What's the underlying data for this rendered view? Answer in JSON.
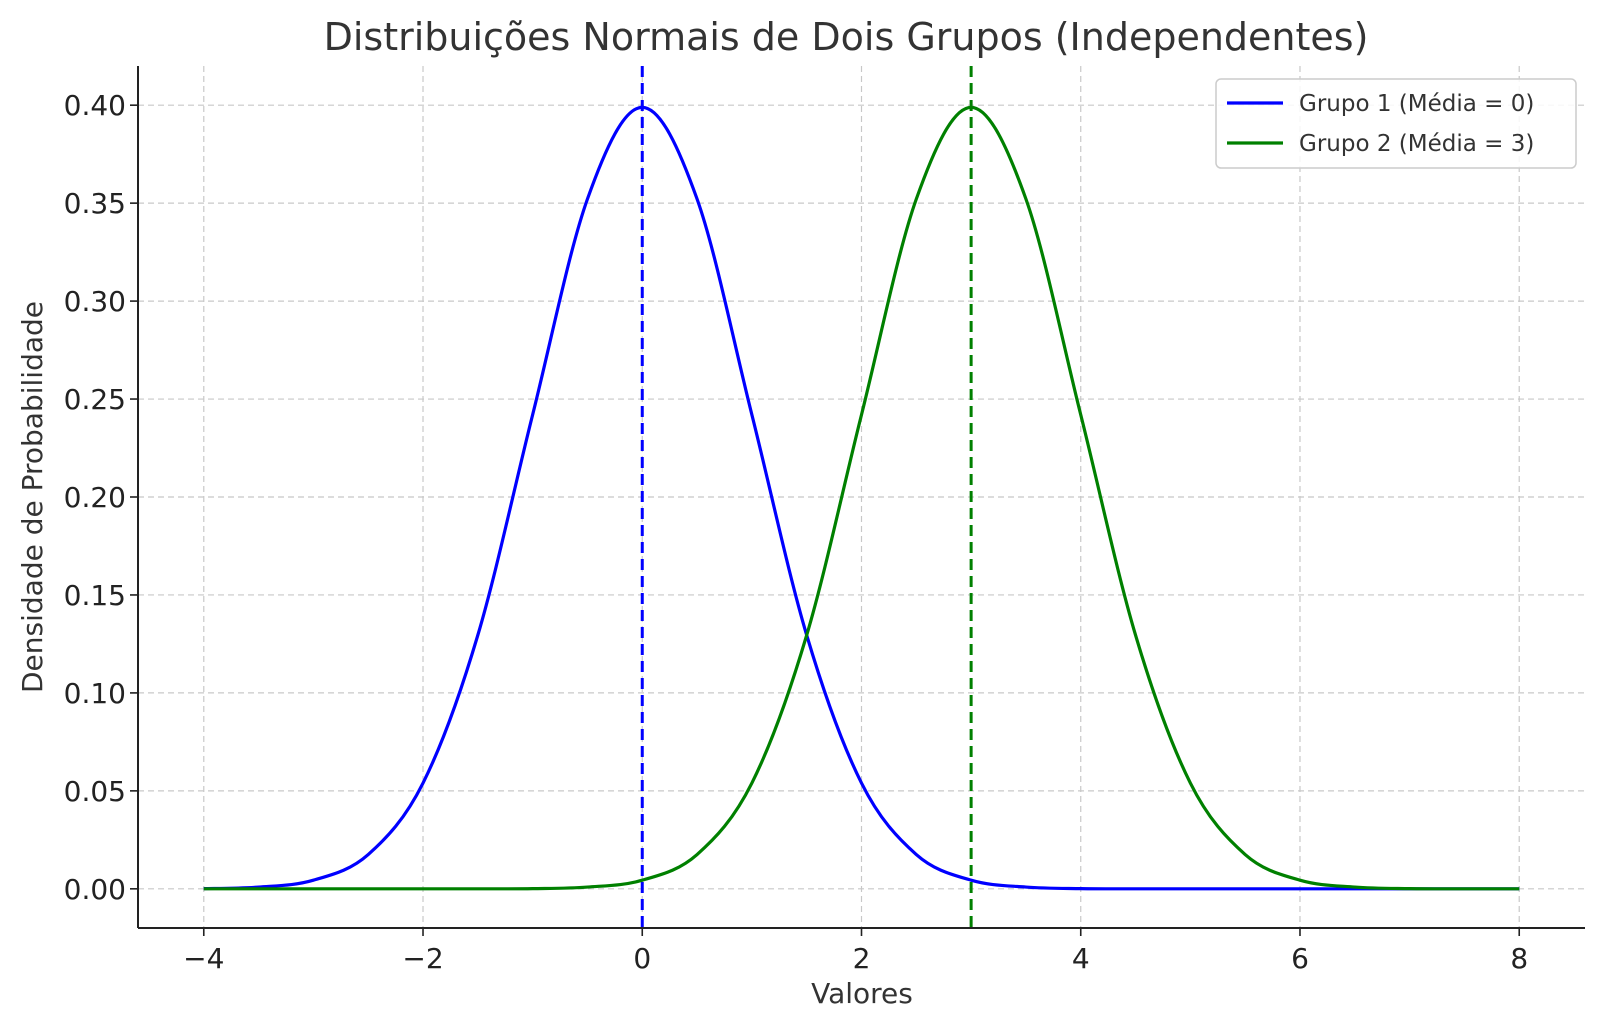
{
  "chart_data": {
    "type": "line",
    "title": "Distribuições Normais de Dois Grupos (Independentes)",
    "xlabel": "Valores",
    "ylabel": "Densidade de Probabilidade",
    "xlim": [
      -4.6,
      8.6
    ],
    "ylim": [
      -0.02,
      0.42
    ],
    "x_ticks": [
      -4,
      -2,
      0,
      2,
      4,
      6,
      8
    ],
    "x_tick_labels": [
      "−4",
      "−2",
      "0",
      "2",
      "4",
      "6",
      "8"
    ],
    "y_ticks": [
      0.0,
      0.05,
      0.1,
      0.15,
      0.2,
      0.25,
      0.3,
      0.35,
      0.4
    ],
    "y_tick_labels": [
      "0.00",
      "0.05",
      "0.10",
      "0.15",
      "0.20",
      "0.25",
      "0.30",
      "0.35",
      "0.40"
    ],
    "grid": true,
    "legend_position": "top-right",
    "series": [
      {
        "name": "Grupo 1 (Média = 0)",
        "color": "#0000ff",
        "x": [
          -4,
          -3.5,
          -3,
          -2.5,
          -2,
          -1.5,
          -1,
          -0.5,
          0,
          0.5,
          1,
          1.5,
          2,
          2.5,
          3,
          3.5,
          4,
          4.5,
          5,
          5.5,
          6,
          6.5,
          7,
          7.5,
          8
        ],
        "y": [
          0.0001,
          0.0009,
          0.0044,
          0.0175,
          0.054,
          0.1295,
          0.242,
          0.3521,
          0.3989,
          0.3521,
          0.242,
          0.1295,
          0.054,
          0.0175,
          0.0044,
          0.0009,
          0.0001,
          0.0,
          0.0,
          0.0,
          0.0,
          0.0,
          0.0,
          0.0,
          0.0
        ],
        "mean_line_x": 0
      },
      {
        "name": "Grupo 2 (Média = 3)",
        "color": "#008000",
        "x": [
          -4,
          -3.5,
          -3,
          -2.5,
          -2,
          -1.5,
          -1,
          -0.5,
          0,
          0.5,
          1,
          1.5,
          2,
          2.5,
          3,
          3.5,
          4,
          4.5,
          5,
          5.5,
          6,
          6.5,
          7,
          7.5,
          8
        ],
        "y": [
          0.0,
          0.0,
          0.0,
          0.0,
          0.0,
          0.0,
          0.0001,
          0.0009,
          0.0044,
          0.0175,
          0.054,
          0.1295,
          0.242,
          0.3521,
          0.3989,
          0.3521,
          0.242,
          0.1295,
          0.054,
          0.0175,
          0.0044,
          0.0009,
          0.0001,
          0.0,
          0.0
        ],
        "mean_line_x": 3
      }
    ]
  }
}
